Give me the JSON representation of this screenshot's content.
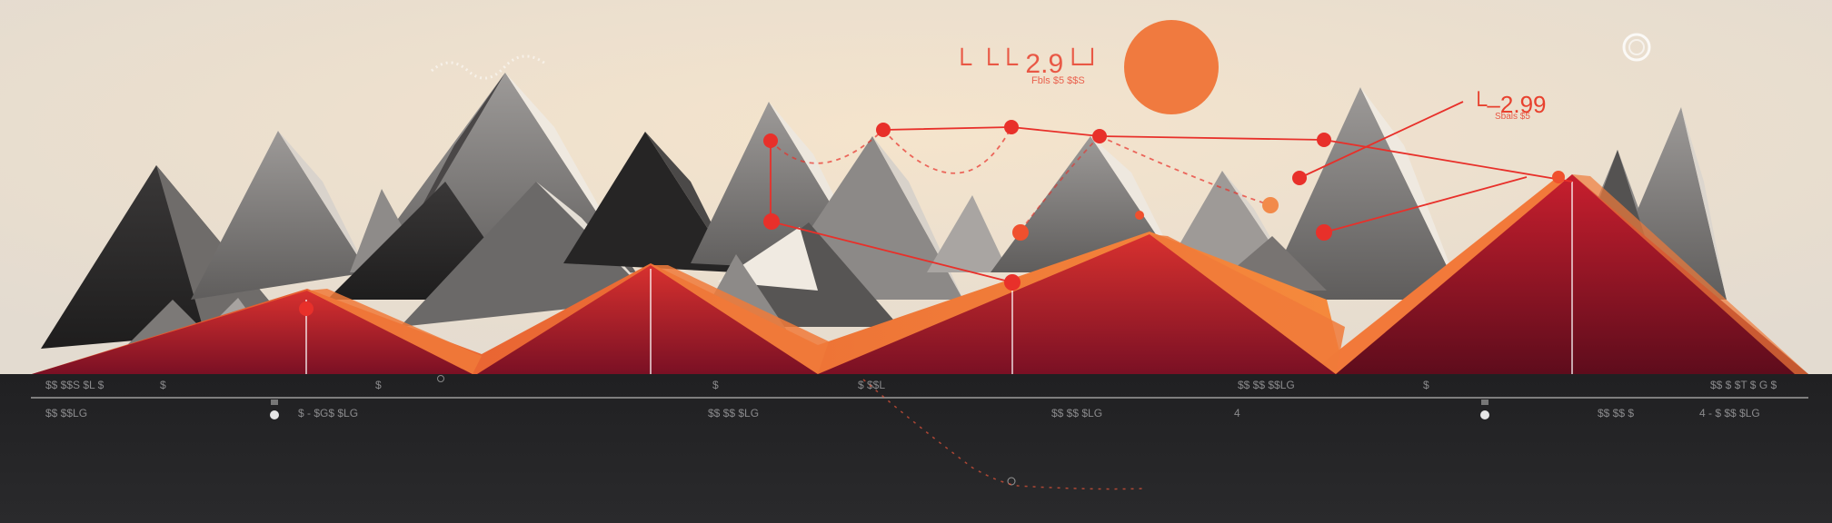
{
  "headline": {
    "main": "└ └└ 2.9└┘",
    "sub": "Fbls $5 $$S"
  },
  "callout": {
    "main": "└‒2.99",
    "sub": "Sbals $5"
  },
  "band_row1": [
    "$$ $$S $L $",
    "$",
    "$",
    "$",
    "$ $$L",
    "$$ $$ $$LG",
    "$",
    "$$ $ $T $ G $"
  ],
  "band_row2": [
    "$$ $$LG",
    "$ - $G$ $LG",
    "$$ $$ $LG",
    "$$ $$ $LG",
    "4",
    "$$ $$ $",
    "4 - $ $$ $LG"
  ],
  "colors": {
    "sky_top": "#ece1cf",
    "sky_bottom": "#f3dcc0",
    "sun": "#f07a3f",
    "accent_red": "#e8302a",
    "ridge_orange": "#f2793a",
    "ridge_crimson": "#b8202e",
    "band": "#1e1e20"
  }
}
